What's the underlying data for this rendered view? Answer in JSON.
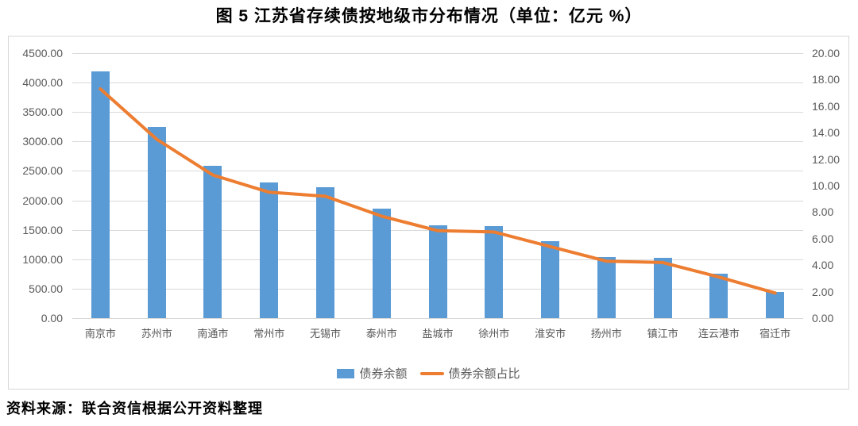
{
  "title": "图 5  江苏省存续债按地级市分布情况（单位：亿元  %）",
  "source": "资料来源：联合资信根据公开资料整理",
  "colors": {
    "bar": "#5B9BD5",
    "line": "#ED7D31",
    "grid": "#d9d9d9",
    "axis_text": "#595959"
  },
  "chart_data": {
    "type": "bar",
    "subtype": "bar-line-combo",
    "title": "图 5  江苏省存续债按地级市分布情况（单位：亿元  %）",
    "categories": [
      "南京市",
      "苏州市",
      "南通市",
      "常州市",
      "无锡市",
      "泰州市",
      "盐城市",
      "徐州市",
      "淮安市",
      "扬州市",
      "镇江市",
      "连云港市",
      "宿迁市"
    ],
    "series": [
      {
        "name": "债券余额",
        "type": "bar",
        "axis": "left",
        "color": "#5B9BD5",
        "values": [
          4190,
          3250,
          2590,
          2300,
          2220,
          1860,
          1580,
          1570,
          1310,
          1040,
          1030,
          750,
          440
        ]
      },
      {
        "name": "债券余额占比",
        "type": "line",
        "axis": "right",
        "color": "#ED7D31",
        "values": [
          17.3,
          13.5,
          10.8,
          9.5,
          9.2,
          7.7,
          6.6,
          6.5,
          5.4,
          4.3,
          4.2,
          3.1,
          1.9
        ]
      }
    ],
    "left_axis": {
      "min": 0,
      "max": 4500,
      "step": 500,
      "decimals": 2
    },
    "right_axis": {
      "min": 0,
      "max": 20,
      "step": 2,
      "decimals": 2
    },
    "grid": true,
    "legend_position": "bottom"
  }
}
